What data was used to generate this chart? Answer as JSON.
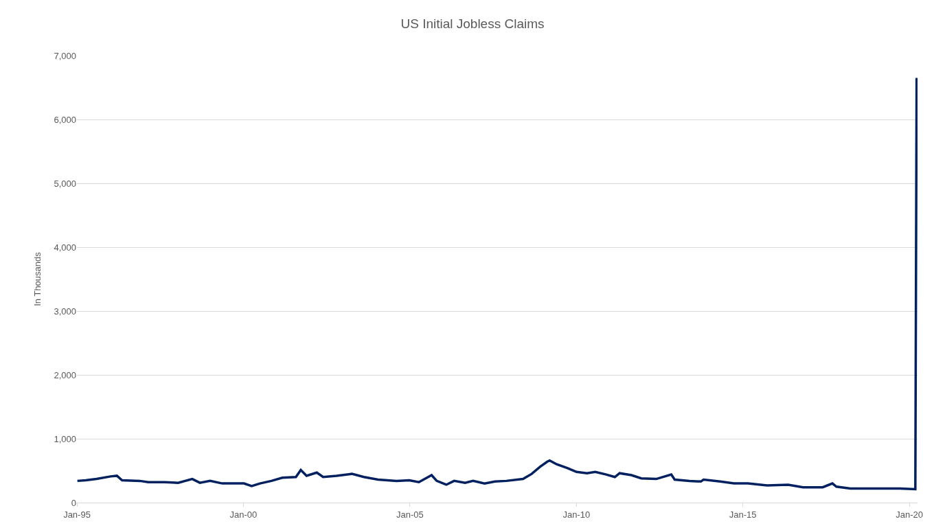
{
  "chart_data": {
    "type": "line",
    "title": "US Initial Jobless Claims",
    "ylabel": "In Thousands",
    "x": [
      "1995-01-06",
      "1995-04-07",
      "1995-08-04",
      "1996-01-05",
      "1996-03-15",
      "1996-05-10",
      "1996-11-22",
      "1997-02-21",
      "1997-08-22",
      "1998-01-16",
      "1998-06-19",
      "1998-09-11",
      "1999-01-01",
      "1999-05-14",
      "1999-09-10",
      "2000-01-07",
      "2000-04-01",
      "2000-07-01",
      "2000-11-04",
      "2001-03-03",
      "2001-07-30",
      "2001-09-22",
      "2001-11-24",
      "2002-03-16",
      "2002-05-25",
      "2002-10-19",
      "2003-04-05",
      "2003-08-16",
      "2004-01-17",
      "2004-08-07",
      "2004-12-25",
      "2005-04-09",
      "2005-08-27",
      "2005-10-22",
      "2006-02-04",
      "2006-05-01",
      "2006-08-29",
      "2006-11-25",
      "2007-03-31",
      "2007-07-23",
      "2007-11-24",
      "2008-05-26",
      "2008-08-29",
      "2008-11-28",
      "2009-02-14",
      "2009-03-14",
      "2009-05-30",
      "2009-09-27",
      "2010-01-02",
      "2010-04-27",
      "2010-07-27",
      "2010-11-24",
      "2011-02-27",
      "2011-04-20",
      "2011-08-28",
      "2011-12-14",
      "2012-05-26",
      "2012-11-07",
      "2012-12-14",
      "2013-05-26",
      "2013-09-27",
      "2013-10-27",
      "2014-04-27",
      "2014-09-24",
      "2015-02-25",
      "2015-09-24",
      "2016-05-12",
      "2016-10-23",
      "2017-05-26",
      "2017-09-09",
      "2017-10-23",
      "2018-03-25",
      "2018-09-24",
      "2019-03-25",
      "2019-09-20",
      "2020-03-07",
      "2020-03-21"
    ],
    "series": [
      {
        "color": "#002060",
        "values": [
          340,
          350,
          370,
          410,
          420,
          350,
          340,
          320,
          320,
          310,
          370,
          310,
          340,
          300,
          300,
          300,
          260,
          300,
          340,
          390,
          400,
          510,
          420,
          470,
          400,
          420,
          450,
          400,
          360,
          340,
          350,
          320,
          430,
          340,
          280,
          340,
          310,
          340,
          300,
          330,
          340,
          370,
          450,
          560,
          640,
          660,
          600,
          540,
          480,
          460,
          480,
          440,
          400,
          460,
          430,
          380,
          370,
          440,
          360,
          340,
          330,
          360,
          330,
          300,
          300,
          270,
          280,
          240,
          240,
          300,
          250,
          220,
          220,
          220,
          220,
          210,
          6650
        ]
      }
    ],
    "xlim": [
      "1995-01-01",
      "2020-03-31"
    ],
    "xticks": [
      {
        "value": "1995-01-01",
        "label": "Jan-95"
      },
      {
        "value": "2000-01-01",
        "label": "Jan-00"
      },
      {
        "value": "2005-01-01",
        "label": "Jan-05"
      },
      {
        "value": "2010-01-01",
        "label": "Jan-10"
      },
      {
        "value": "2015-01-01",
        "label": "Jan-15"
      },
      {
        "value": "2020-01-01",
        "label": "Jan-20"
      }
    ],
    "ylim": [
      0,
      7000
    ],
    "yticks": [
      0,
      {
        "value": 1000,
        "label": "1,000"
      },
      {
        "value": 2000,
        "label": "2,000"
      },
      {
        "value": 3000,
        "label": "3,000"
      },
      {
        "value": 4000,
        "label": "4,000"
      },
      {
        "value": 5000,
        "label": "5,000"
      },
      {
        "value": 6000,
        "label": "6,000"
      },
      {
        "value": 7000,
        "label": "7,000"
      }
    ],
    "grid": "y",
    "marker": "none",
    "line_style": "solid"
  }
}
